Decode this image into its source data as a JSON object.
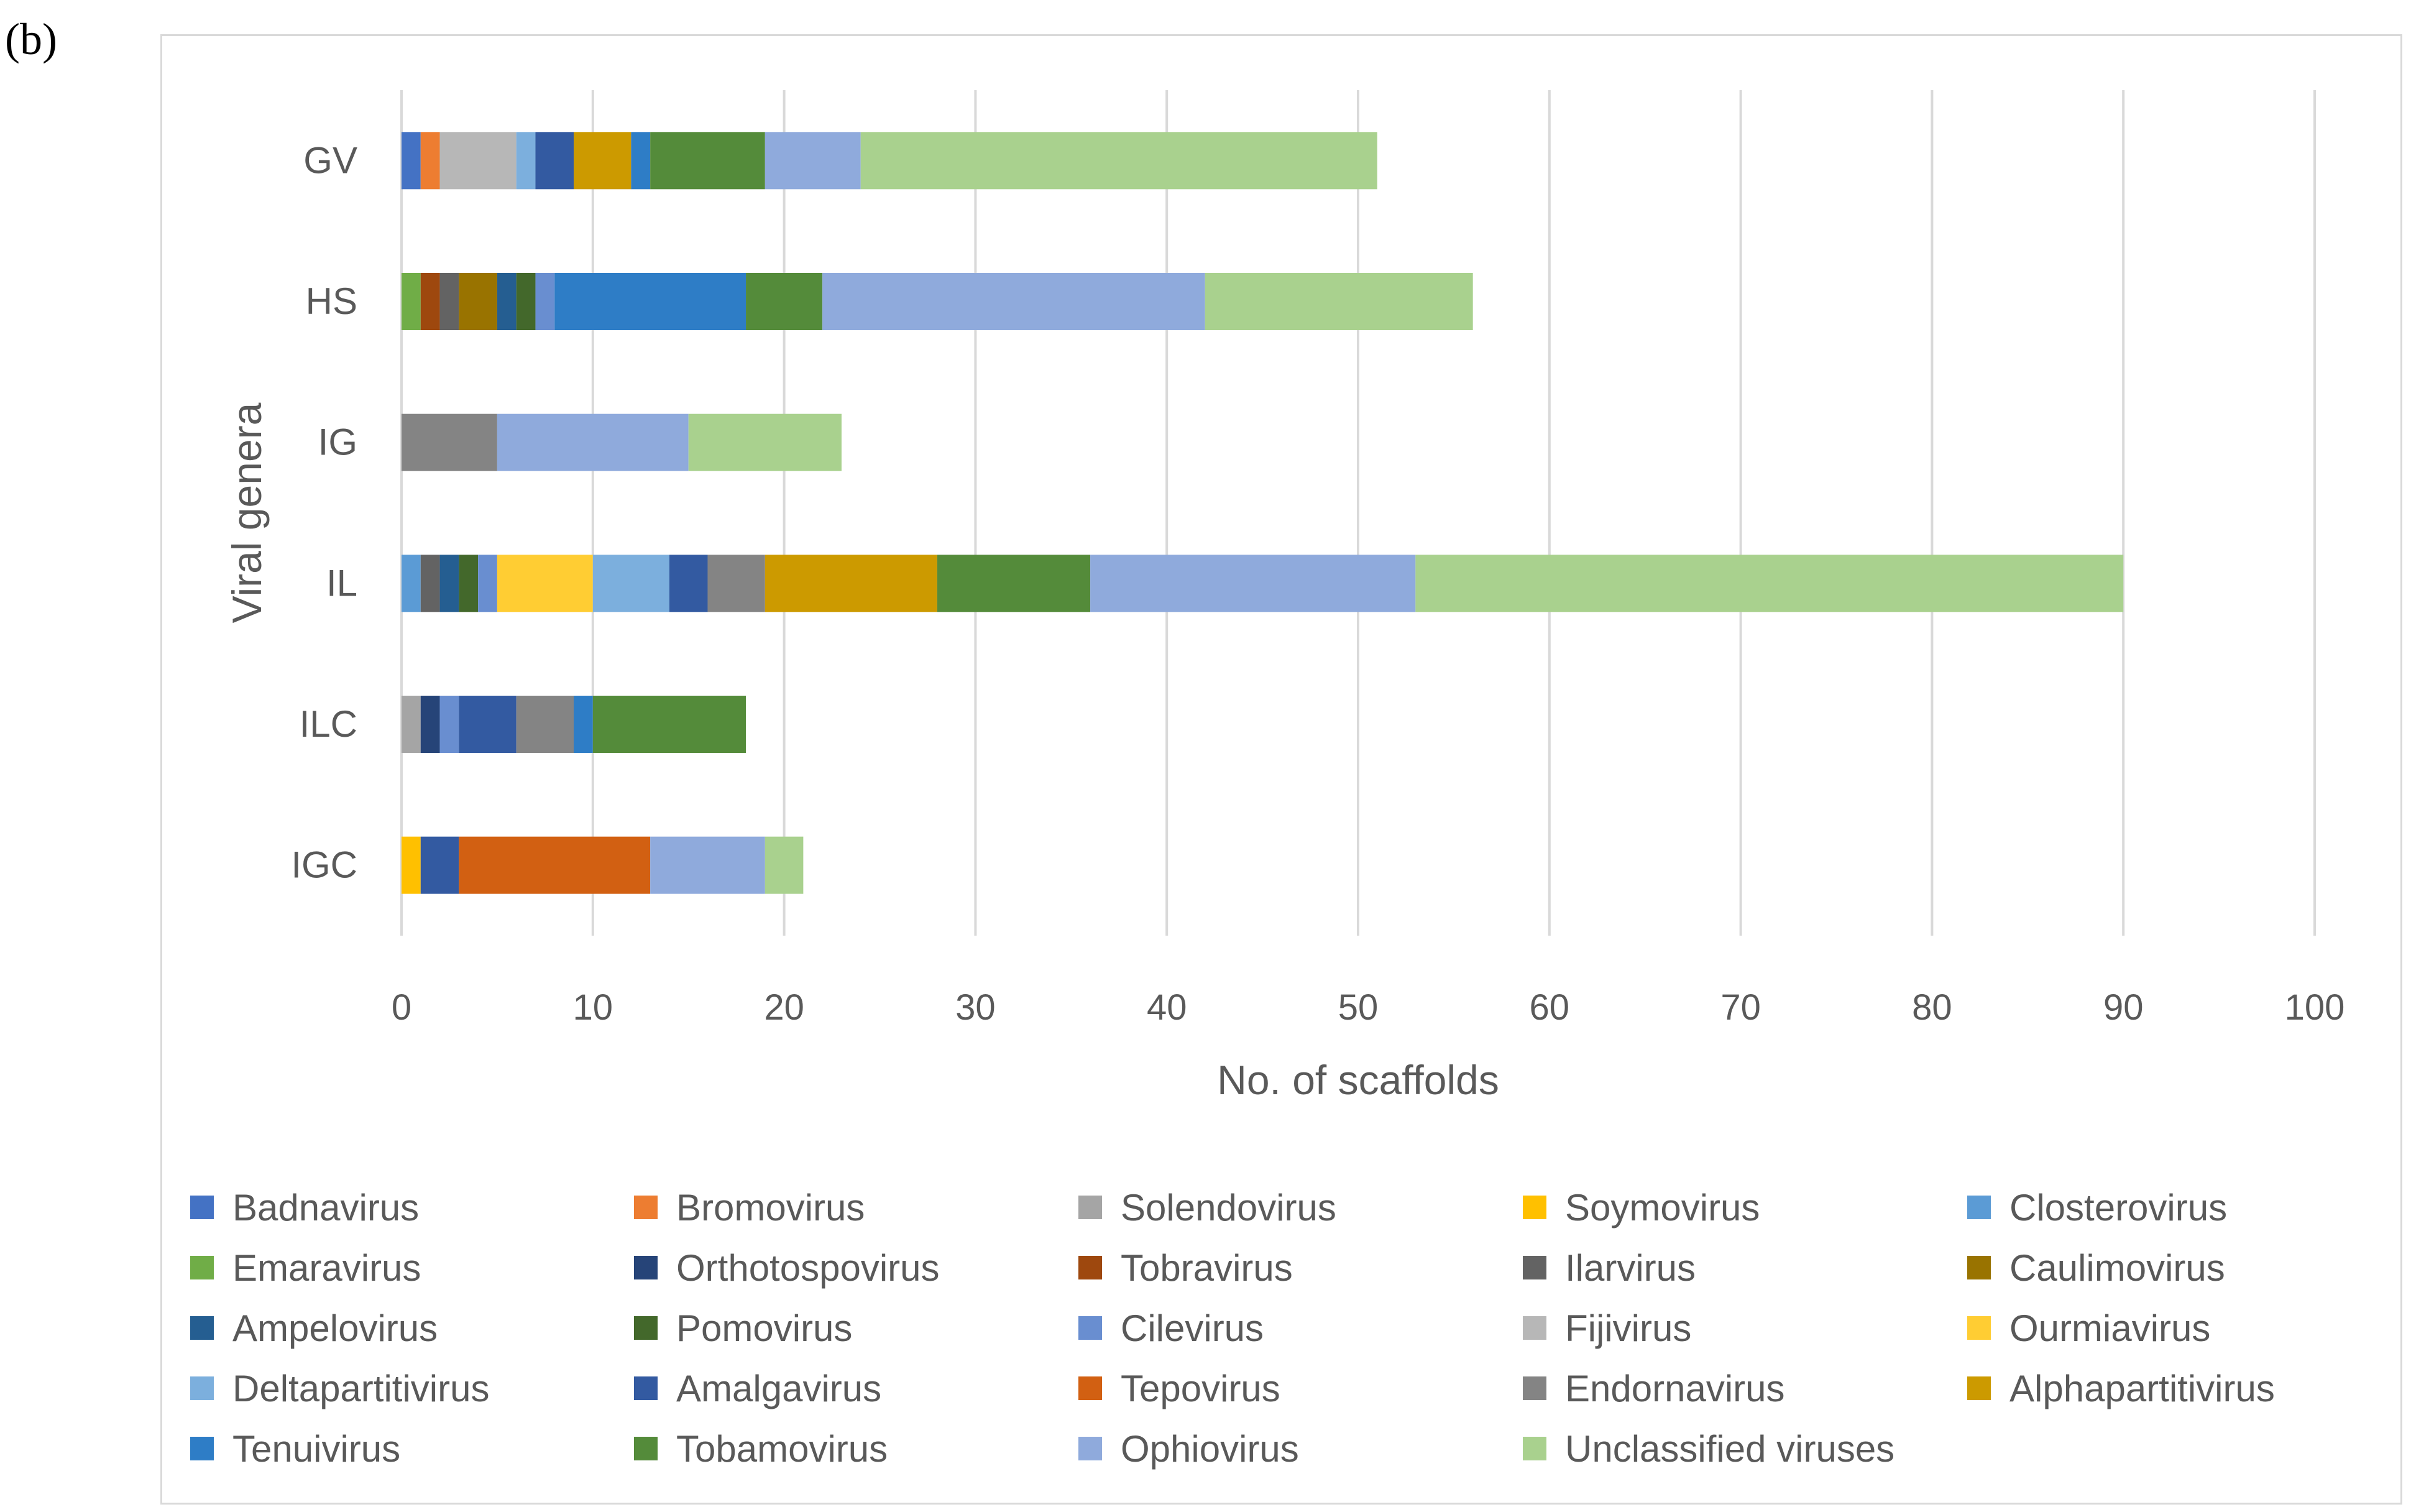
{
  "panel_label": "(b)",
  "chart_data": {
    "type": "bar",
    "orientation": "horizontal",
    "stacked": true,
    "title": "",
    "xlabel": "No. of scaffolds",
    "ylabel": "Viral genera",
    "xlim": [
      0,
      100
    ],
    "xticks": [
      0,
      10,
      20,
      30,
      40,
      50,
      60,
      70,
      80,
      90,
      100
    ],
    "grid": "vertical",
    "legend_position": "bottom",
    "categories": [
      "GV",
      "HS",
      "IG",
      "IL",
      "ILC",
      "IGC"
    ],
    "series": [
      {
        "name": "Badnavirus",
        "color": "#4472c4",
        "values": [
          1,
          0,
          0,
          0,
          0,
          0
        ]
      },
      {
        "name": "Bromovirus",
        "color": "#ed7d31",
        "values": [
          1,
          0,
          0,
          0,
          0,
          0
        ]
      },
      {
        "name": "Solendovirus",
        "color": "#a5a5a5",
        "values": [
          0,
          0,
          0,
          0,
          1,
          0
        ]
      },
      {
        "name": "Soymovirus",
        "color": "#ffc000",
        "values": [
          0,
          0,
          0,
          0,
          0,
          1
        ]
      },
      {
        "name": "Closterovirus",
        "color": "#5b9bd5",
        "values": [
          0,
          0,
          0,
          1,
          0,
          0
        ]
      },
      {
        "name": "Emaravirus",
        "color": "#70ad47",
        "values": [
          0,
          1,
          0,
          0,
          0,
          0
        ]
      },
      {
        "name": "Orthotospovirus",
        "color": "#264478",
        "values": [
          0,
          0,
          0,
          0,
          1,
          0
        ]
      },
      {
        "name": "Tobravirus",
        "color": "#9e480e",
        "values": [
          0,
          1,
          0,
          0,
          0,
          0
        ]
      },
      {
        "name": "Ilarvirus",
        "color": "#636363",
        "values": [
          0,
          1,
          0,
          1,
          0,
          0
        ]
      },
      {
        "name": "Caulimovirus",
        "color": "#997300",
        "values": [
          0,
          2,
          0,
          0,
          0,
          0
        ]
      },
      {
        "name": "Ampelovirus",
        "color": "#255e91",
        "values": [
          0,
          1,
          0,
          1,
          0,
          0
        ]
      },
      {
        "name": "Pomovirus",
        "color": "#43682b",
        "values": [
          0,
          1,
          0,
          1,
          0,
          0
        ]
      },
      {
        "name": "Cilevirus",
        "color": "#698ed0",
        "values": [
          0,
          1,
          0,
          1,
          1,
          0
        ]
      },
      {
        "name": "Fijivirus",
        "color": "#b7b7b7",
        "values": [
          4,
          0,
          0,
          0,
          0,
          0
        ]
      },
      {
        "name": "Ourmiavirus",
        "color": "#ffcd33",
        "values": [
          0,
          0,
          0,
          5,
          0,
          0
        ]
      },
      {
        "name": "Deltapartitivirus",
        "color": "#7cafdd",
        "values": [
          1,
          0,
          0,
          4,
          0,
          0
        ]
      },
      {
        "name": "Amalgavirus",
        "color": "#335aa1",
        "values": [
          2,
          0,
          0,
          2,
          3,
          2
        ]
      },
      {
        "name": "Tepovirus",
        "color": "#d26012",
        "values": [
          0,
          0,
          0,
          0,
          0,
          10
        ]
      },
      {
        "name": "Endornavirus",
        "color": "#848484",
        "values": [
          0,
          0,
          5,
          3,
          3,
          0
        ]
      },
      {
        "name": "Alphapartitivirus",
        "color": "#cc9a00",
        "values": [
          3,
          0,
          0,
          9,
          0,
          0
        ]
      },
      {
        "name": "Tenuivirus",
        "color": "#2e7dc6",
        "values": [
          1,
          10,
          0,
          0,
          1,
          0
        ]
      },
      {
        "name": "Tobamovirus",
        "color": "#548b3a",
        "values": [
          6,
          4,
          0,
          8,
          8,
          0
        ]
      },
      {
        "name": "Ophiovirus",
        "color": "#8faadc",
        "values": [
          5,
          20,
          10,
          17,
          0,
          6
        ]
      },
      {
        "name": "Unclassified viruses",
        "color": "#a9d18e",
        "values": [
          27,
          14,
          8,
          37,
          0,
          2
        ]
      }
    ]
  }
}
